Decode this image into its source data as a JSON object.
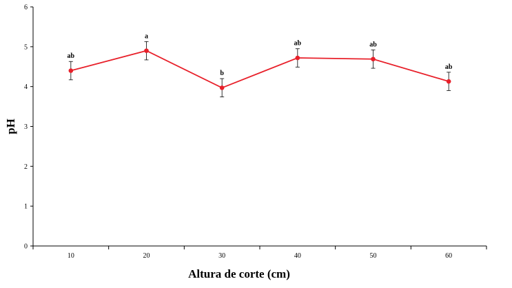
{
  "chart_data": {
    "type": "line",
    "xlabel": "Altura de corte (cm)",
    "ylabel": "pH",
    "ylim": [
      0,
      6
    ],
    "yticks": [
      "0",
      "1",
      "2",
      "3",
      "4",
      "5",
      "6"
    ],
    "categories": [
      "10",
      "20",
      "30",
      "40",
      "50",
      "60"
    ],
    "series": [
      {
        "values": [
          4.4,
          4.9,
          3.97,
          4.72,
          4.69,
          4.13
        ],
        "errors": [
          0.23,
          0.23,
          0.23,
          0.23,
          0.23,
          0.23
        ],
        "labels": [
          "ab",
          "a",
          "b",
          "ab",
          "ab",
          "ab"
        ],
        "color": "#e8202a"
      }
    ],
    "grid": false,
    "legend": "none"
  }
}
